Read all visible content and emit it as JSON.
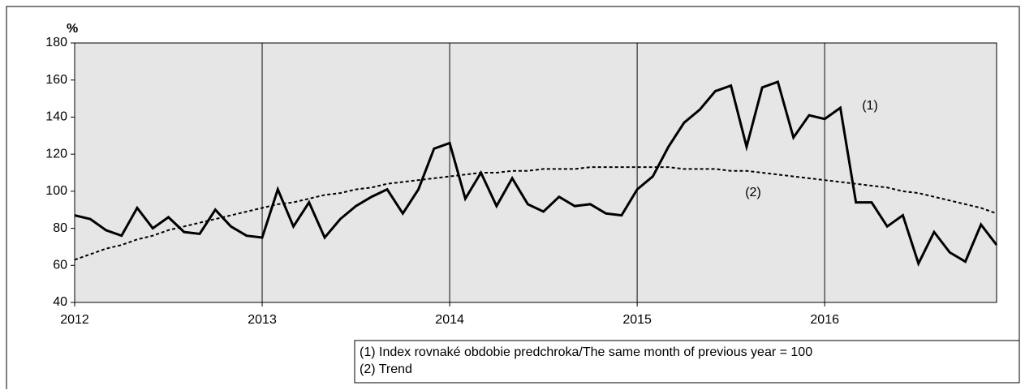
{
  "chart_data": {
    "type": "line",
    "y_unit": "%",
    "categories": [
      "2012",
      null,
      null,
      null,
      null,
      null,
      null,
      null,
      null,
      null,
      null,
      null,
      "2013",
      null,
      null,
      null,
      null,
      null,
      null,
      null,
      null,
      null,
      null,
      null,
      "2014",
      null,
      null,
      null,
      null,
      null,
      null,
      null,
      null,
      null,
      null,
      null,
      "2015",
      null,
      null,
      null,
      null,
      null,
      null,
      null,
      null,
      null,
      null,
      null,
      "2016",
      null,
      null,
      null,
      null,
      null,
      null,
      null,
      null,
      null,
      null,
      null
    ],
    "series": [
      {
        "name": "(1) Index rovnaké obdobie predchroka/The same month of previous year = 100",
        "color": "#000000",
        "style": "solid",
        "values": [
          87,
          85,
          79,
          76,
          91,
          80,
          86,
          78,
          77,
          90,
          81,
          76,
          75,
          101,
          81,
          94,
          75,
          85,
          92,
          97,
          101,
          88,
          101,
          123,
          126,
          96,
          110,
          92,
          107,
          93,
          89,
          97,
          92,
          93,
          88,
          87,
          101,
          108,
          124,
          137,
          144,
          154,
          157,
          124,
          156,
          159,
          129,
          141,
          139,
          145,
          94,
          94,
          81,
          87,
          61,
          78,
          67,
          62,
          82,
          71
        ]
      },
      {
        "name": "(2) Trend",
        "color": "#000000",
        "style": "dashed",
        "values": [
          63,
          66,
          69,
          71,
          74,
          76,
          79,
          81,
          83,
          85,
          87,
          89,
          91,
          93,
          94,
          96,
          98,
          99,
          101,
          102,
          104,
          105,
          106,
          107,
          108,
          109,
          110,
          110,
          111,
          111,
          112,
          112,
          112,
          113,
          113,
          113,
          113,
          113,
          113,
          112,
          112,
          112,
          111,
          111,
          110,
          109,
          108,
          107,
          106,
          105,
          104,
          103,
          102,
          100,
          99,
          97,
          95,
          93,
          91,
          88
        ]
      }
    ],
    "annotations": [
      "(1)",
      "(2)"
    ],
    "ylim": [
      40,
      180
    ],
    "yticks": [
      40,
      60,
      80,
      100,
      120,
      140,
      160,
      180
    ],
    "grid": true,
    "legend": "bottom-right"
  }
}
